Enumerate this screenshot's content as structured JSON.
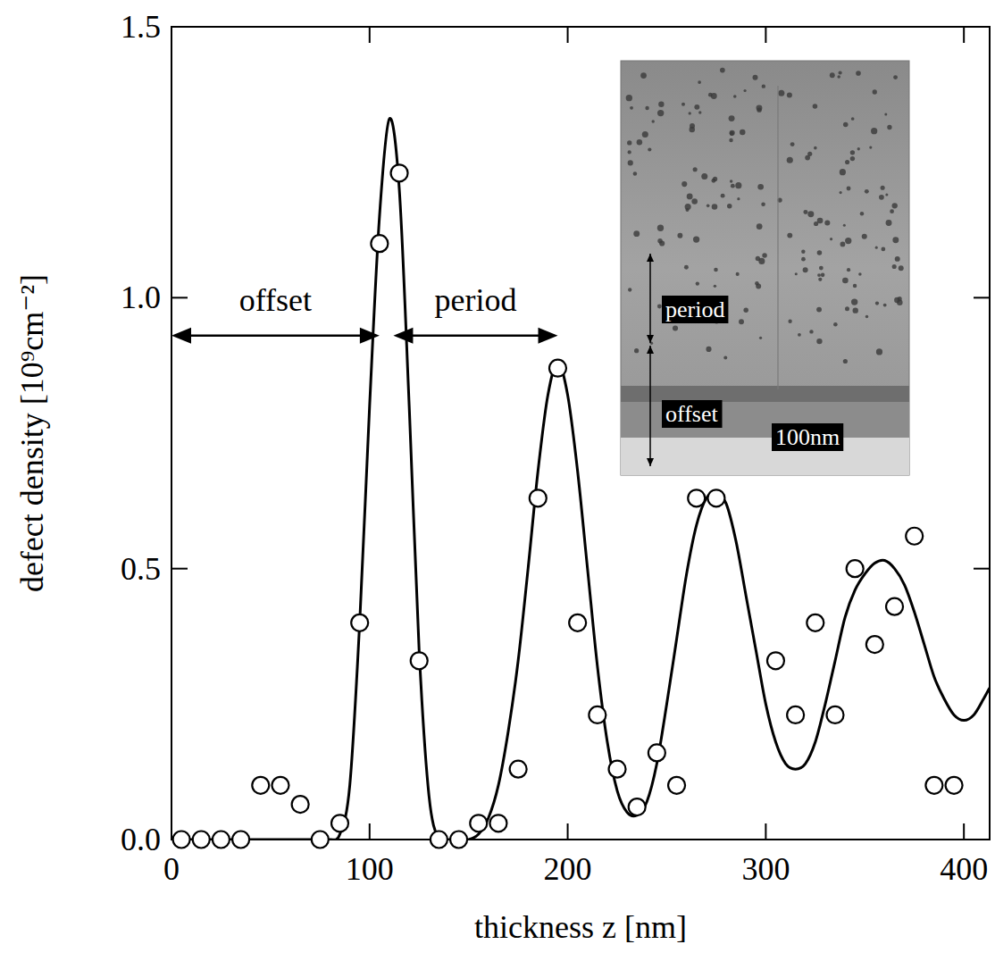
{
  "chart_data": {
    "type": "scatter",
    "x_label": "thickness z [nm]",
    "y_label": "defect density [10⁹cm⁻²]",
    "xlim": [
      0,
      413
    ],
    "ylim": [
      0,
      1.5
    ],
    "xticks": [
      0,
      100,
      200,
      300,
      400
    ],
    "yticks": [
      {
        "value": 0,
        "label": "0.0"
      },
      {
        "value": 0.5,
        "label": "0.5"
      },
      {
        "value": 1,
        "label": "1.0"
      },
      {
        "value": 1.5,
        "label": "1.5"
      }
    ],
    "series": [
      {
        "type": "scatter",
        "marker": "circle",
        "color": "#000000",
        "x": [
          5,
          15,
          25,
          35,
          45,
          55,
          65,
          75,
          85,
          95,
          105,
          115,
          125,
          135,
          145,
          155,
          165,
          175,
          185,
          195,
          205,
          215,
          225,
          235,
          245,
          255,
          265,
          275,
          305,
          315,
          325,
          335,
          345,
          355,
          365,
          375,
          385,
          395
        ],
        "values": [
          0,
          0,
          0,
          0,
          0.1,
          0.1,
          0.065,
          0,
          0.03,
          0.4,
          1.1,
          1.23,
          0.33,
          0,
          0,
          0.03,
          0.03,
          0.13,
          0.63,
          0.87,
          0.4,
          0.23,
          0.13,
          0.06,
          0.16,
          0.1,
          0.63,
          0.63,
          0.33,
          0.23,
          0.4,
          0.23,
          0.5,
          0.36,
          0.43,
          0.56,
          0.1,
          0.1
        ]
      },
      {
        "type": "line",
        "line_style": "solid",
        "color": "#000000",
        "x": [
          0,
          5,
          10,
          15,
          20,
          25,
          30,
          35,
          40,
          45,
          50,
          55,
          60,
          65,
          70,
          75,
          80,
          85,
          90,
          95,
          100,
          105,
          110,
          115,
          120,
          125,
          130,
          135,
          140,
          145,
          150,
          155,
          160,
          165,
          170,
          175,
          180,
          185,
          190,
          195,
          200,
          205,
          210,
          215,
          220,
          225,
          230,
          235,
          240,
          245,
          250,
          255,
          260,
          265,
          270,
          275,
          280,
          285,
          290,
          295,
          300,
          305,
          310,
          315,
          320,
          325,
          330,
          335,
          340,
          345,
          350,
          355,
          360,
          365,
          370,
          375,
          380,
          385,
          390,
          395,
          400,
          405,
          410,
          413
        ],
        "values": [
          0,
          0,
          0,
          0,
          0,
          0,
          0,
          0,
          0,
          0,
          0,
          0,
          0,
          0,
          0,
          0,
          0,
          0.01,
          0.1,
          0.4,
          0.8,
          1.15,
          1.33,
          1.2,
          0.8,
          0.35,
          0.08,
          0,
          0,
          0,
          0,
          0.01,
          0.04,
          0.1,
          0.2,
          0.33,
          0.5,
          0.68,
          0.82,
          0.88,
          0.82,
          0.68,
          0.5,
          0.32,
          0.18,
          0.09,
          0.05,
          0.045,
          0.07,
          0.14,
          0.25,
          0.37,
          0.49,
          0.58,
          0.63,
          0.64,
          0.62,
          0.55,
          0.45,
          0.35,
          0.25,
          0.18,
          0.14,
          0.13,
          0.14,
          0.18,
          0.25,
          0.33,
          0.41,
          0.46,
          0.49,
          0.51,
          0.515,
          0.5,
          0.47,
          0.42,
          0.36,
          0.3,
          0.26,
          0.23,
          0.22,
          0.23,
          0.26,
          0.28
        ]
      }
    ],
    "annotations": [
      {
        "text": "offset",
        "x": [
          0,
          105
        ],
        "y": 0.93
      },
      {
        "text": "period",
        "x": [
          112,
          195
        ],
        "y": 0.93
      }
    ],
    "inset": {
      "labels": [
        "period",
        "offset",
        "100nm"
      ]
    }
  }
}
